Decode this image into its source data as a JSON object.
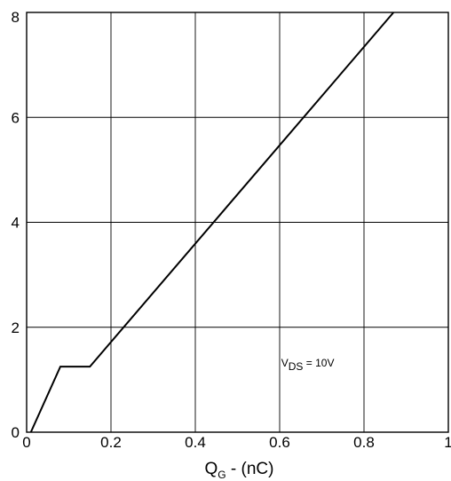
{
  "chart_data": {
    "type": "line",
    "title": "",
    "xlabel_main": "Q",
    "xlabel_sub": "G",
    "xlabel_rest": " - (nC)",
    "ylabel": "",
    "xlim": [
      0,
      1
    ],
    "ylim": [
      0,
      8
    ],
    "x_ticks": [
      0,
      0.2,
      0.4,
      0.6,
      0.8,
      1
    ],
    "x_tick_labels": [
      "0",
      "0.2",
      "0.4",
      "0.6",
      "0.8",
      "1"
    ],
    "y_ticks": [
      0,
      2,
      4,
      6,
      8
    ],
    "y_tick_labels": [
      "0",
      "2",
      "4",
      "6",
      "8"
    ],
    "grid": true,
    "series": [
      {
        "x": [
          0.01,
          0.08,
          0.15,
          0.87
        ],
        "y": [
          0,
          1.25,
          1.25,
          8.0
        ]
      }
    ],
    "annotation": {
      "main": "V",
      "sub": "DS",
      "rest": " = 10V",
      "x": 0.73,
      "y": 1.25
    }
  }
}
